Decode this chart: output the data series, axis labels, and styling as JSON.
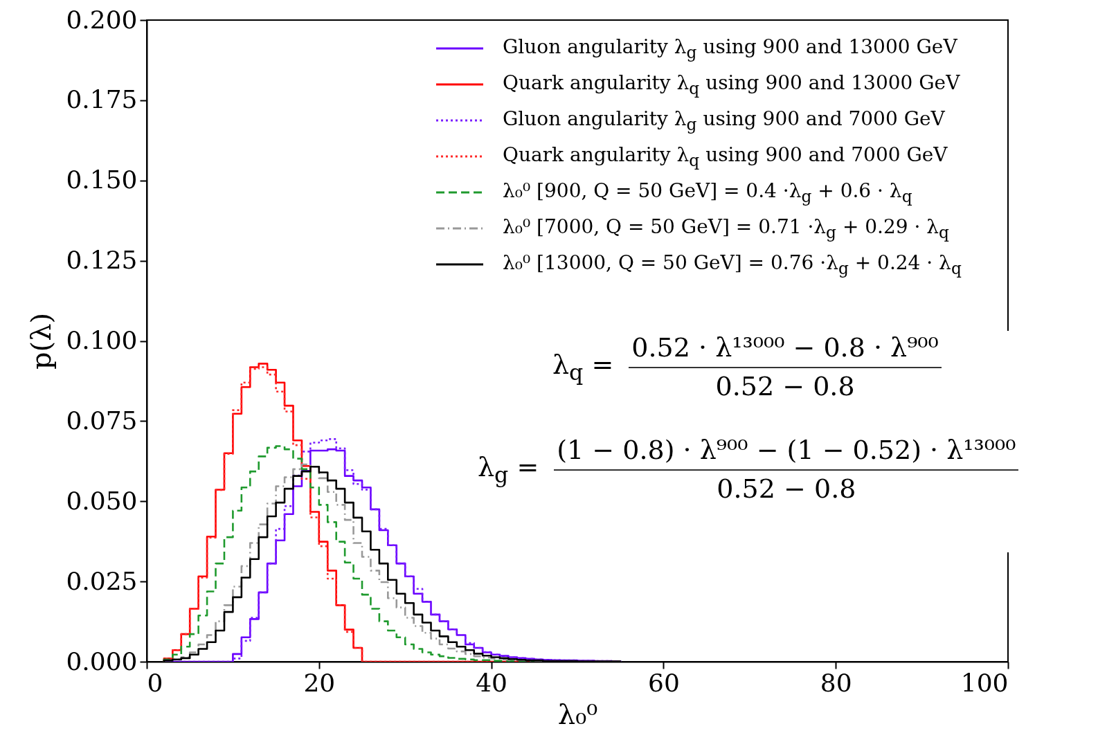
{
  "chart_data": {
    "type": "histogram",
    "xlabel": "λ₀⁰",
    "ylabel": "p(λ)",
    "xlim": [
      0,
      100
    ],
    "xticks": [
      0,
      20,
      40,
      60,
      80,
      100
    ],
    "ylim": [
      0,
      0.2
    ],
    "yticks": [
      {
        "value": 0,
        "label": "0.000"
      },
      0.025,
      {
        "value": 0.05,
        "label": "0.050"
      },
      0.075,
      {
        "value": 0.1,
        "label": "0.100"
      },
      0.125,
      {
        "value": 0.15,
        "label": "0.150"
      },
      0.175,
      {
        "value": 0.2,
        "label": "0.200"
      }
    ],
    "legend": "top right",
    "bins": [
      2,
      3,
      4,
      5,
      6,
      7,
      8,
      9,
      10,
      11,
      12,
      13,
      14,
      15,
      16,
      17,
      18,
      19,
      20,
      21,
      22,
      23,
      24,
      25,
      26,
      27,
      28,
      29,
      30,
      31,
      32,
      33,
      34,
      35,
      36,
      37,
      38,
      39,
      40,
      41,
      42,
      43,
      44,
      45,
      46,
      47,
      48,
      49,
      50,
      51,
      52,
      53,
      54,
      55
    ],
    "series": [
      {
        "name": "Gluon angularity λ$_{g}$ using 900 and 13000 GeV",
        "color": "#6a00ff",
        "line_style": "solid",
        "values": [
          0,
          0,
          0,
          0,
          0,
          0,
          0,
          0,
          0.0024,
          0.0076,
          0.0133,
          0.0216,
          0.0306,
          0.0378,
          0.046,
          0.0547,
          0.0595,
          0.0658,
          0.0658,
          0.0662,
          0.0658,
          0.0579,
          0.0565,
          0.0543,
          0.0475,
          0.041,
          0.0363,
          0.0306,
          0.0266,
          0.0212,
          0.0187,
          0.0147,
          0.0126,
          0.0101,
          0.0083,
          0.0054,
          0.0043,
          0.0029,
          0.0022,
          0.0018,
          0.0014,
          0.0011,
          0.0009,
          0.0007,
          0.0006,
          0.0005,
          0.0004,
          0.0004,
          0.0003,
          0.0003,
          0.0002,
          0.0002,
          0.0001
        ]
      },
      {
        "name": "Quark angularity λ$_{q}$ using 900 and 13000 GeV",
        "color": "#ff0000",
        "line_style": "solid",
        "values": [
          0.001,
          0.0036,
          0.0086,
          0.0165,
          0.0266,
          0.039,
          0.0536,
          0.065,
          0.0773,
          0.0856,
          0.0918,
          0.0929,
          0.091,
          0.087,
          0.0798,
          0.069,
          0.061,
          0.0467,
          0.0374,
          0.0284,
          0.0176,
          0.01,
          0.0043,
          0,
          0,
          0,
          0,
          0,
          0,
          0,
          0,
          0,
          0,
          0,
          0,
          0,
          0,
          0,
          0,
          0,
          0,
          0,
          0,
          0,
          0,
          0,
          0,
          0,
          0,
          0,
          0,
          0,
          0
        ]
      },
      {
        "name": "Gluon angularity λ$_{g}$ using 900 and 7000 GeV",
        "color": "#7a1fff",
        "line_style": "dotted",
        "values": [
          0,
          0,
          0,
          0,
          0,
          0,
          0,
          0,
          0.001,
          0.0065,
          0.0137,
          0.0216,
          0.0306,
          0.0414,
          0.0485,
          0.058,
          0.0655,
          0.0683,
          0.069,
          0.0694,
          0.0665,
          0.0597,
          0.0554,
          0.0536,
          0.0475,
          0.0414,
          0.0363,
          0.0306,
          0.0266,
          0.0227,
          0.0187,
          0.0147,
          0.0126,
          0.0101,
          0.0083,
          0.0058,
          0.0043,
          0.003,
          0.0022,
          0.0018,
          0.0014,
          0.0011,
          0.0009,
          0.0007,
          0.0006,
          0.0005,
          0.0004,
          0.0004,
          0.0003,
          0.0003,
          0.0002,
          0.0002,
          0.0001
        ]
      },
      {
        "name": "Quark angularity λ$_{q}$ using 900 and 7000 GeV",
        "color": "#ff2a2a",
        "line_style": "dotted",
        "values": [
          0.001,
          0.0036,
          0.0086,
          0.0165,
          0.0262,
          0.0387,
          0.0535,
          0.0648,
          0.0784,
          0.087,
          0.0913,
          0.0918,
          0.0895,
          0.0842,
          0.078,
          0.0675,
          0.057,
          0.045,
          0.036,
          0.0259,
          0.0176,
          0.0093,
          0.0043,
          0,
          0,
          0,
          0,
          0,
          0,
          0,
          0,
          0,
          0,
          0,
          0,
          0,
          0,
          0,
          0,
          0,
          0,
          0,
          0,
          0,
          0,
          0,
          0,
          0,
          0,
          0,
          0,
          0,
          0
        ]
      },
      {
        "name": "λ₀⁰ [900, Q = 50 GeV] = 0.4 ·λ$_{g}$ + 0.6 · λ$_{q}$",
        "color": "#1f9a2e",
        "line_style": "dashed",
        "values": [
          0.0007,
          0.0022,
          0.0047,
          0.0086,
          0.0144,
          0.0219,
          0.0306,
          0.0388,
          0.0471,
          0.0543,
          0.0593,
          0.064,
          0.0667,
          0.0672,
          0.0662,
          0.0633,
          0.06,
          0.0543,
          0.0489,
          0.0435,
          0.0374,
          0.0309,
          0.0259,
          0.0209,
          0.0165,
          0.0126,
          0.0097,
          0.0076,
          0.0054,
          0.004,
          0.0029,
          0.0022,
          0.0017,
          0.0012,
          0.0009,
          0.0007,
          0.0005,
          0.0005,
          0.0003,
          0.0003,
          0.0002,
          0.0002,
          0.0002,
          0.0001,
          0.0001,
          0.0001,
          0,
          0,
          0,
          0,
          0,
          0,
          0
        ]
      },
      {
        "name": "λ₀⁰ [7000, Q = 50 GeV] = 0.71 ·λ$_{g}$ + 0.29 · λ$_{q}$",
        "color": "#999999",
        "line_style": "dashdot",
        "values": [
          0.0004,
          0.0007,
          0.0014,
          0.0029,
          0.0054,
          0.0083,
          0.0126,
          0.0176,
          0.0234,
          0.0298,
          0.037,
          0.0428,
          0.0493,
          0.0547,
          0.0575,
          0.06,
          0.0615,
          0.0608,
          0.0572,
          0.0529,
          0.0489,
          0.0442,
          0.037,
          0.0327,
          0.0284,
          0.0248,
          0.0198,
          0.0169,
          0.0137,
          0.0111,
          0.009,
          0.0072,
          0.0054,
          0.0041,
          0.0032,
          0.0024,
          0.0017,
          0.0013,
          0.001,
          0.0007,
          0.0005,
          0.0005,
          0.0003,
          0.0003,
          0.0002,
          0.0002,
          0.0002,
          0.0002,
          0.0001,
          0.0001,
          0.0001,
          0.0001,
          0
        ]
      },
      {
        "name": "λ₀⁰ [13000, Q = 50 GeV] = 0.76 ·λ$_{g}$ + 0.24 · λ$_{q}$",
        "color": "#000000",
        "line_style": "solid",
        "values": [
          0.0004,
          0.0007,
          0.0011,
          0.0022,
          0.004,
          0.0061,
          0.0097,
          0.0155,
          0.0201,
          0.0262,
          0.032,
          0.0388,
          0.0453,
          0.0496,
          0.0539,
          0.0579,
          0.0593,
          0.0608,
          0.059,
          0.0565,
          0.0539,
          0.0496,
          0.0449,
          0.0406,
          0.0349,
          0.0306,
          0.0255,
          0.0212,
          0.0183,
          0.0147,
          0.0122,
          0.0097,
          0.0079,
          0.0061,
          0.0047,
          0.0036,
          0.0025,
          0.0019,
          0.0014,
          0.0011,
          0.0008,
          0.0006,
          0.0004,
          0.0004,
          0.0002,
          0.0002,
          0.0002,
          0.0002,
          0.0001,
          0.0001,
          0.0001,
          0.0001,
          0.0001
        ]
      }
    ],
    "annotations": [
      "λ$_{q}$ =",
      "0.52 · λ¹³⁰⁰⁰ − 0.8 · λ⁹⁰⁰",
      "0.52 − 0.8",
      "λ$_{g}$ =",
      "(1 − 0.8) · λ⁹⁰⁰ − (1 − 0.52) · λ¹³⁰⁰⁰",
      "0.52 − 0.8"
    ]
  }
}
